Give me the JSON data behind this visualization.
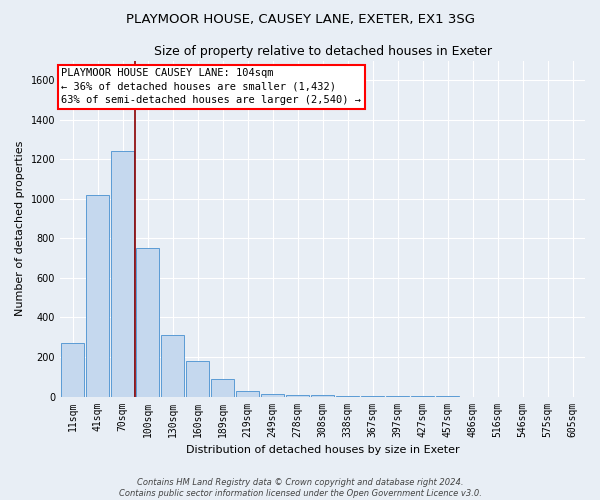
{
  "title1": "PLAYMOOR HOUSE, CAUSEY LANE, EXETER, EX1 3SG",
  "title2": "Size of property relative to detached houses in Exeter",
  "xlabel": "Distribution of detached houses by size in Exeter",
  "ylabel": "Number of detached properties",
  "categories": [
    "11sqm",
    "41sqm",
    "70sqm",
    "100sqm",
    "130sqm",
    "160sqm",
    "189sqm",
    "219sqm",
    "249sqm",
    "278sqm",
    "308sqm",
    "338sqm",
    "367sqm",
    "397sqm",
    "427sqm",
    "457sqm",
    "486sqm",
    "516sqm",
    "546sqm",
    "575sqm",
    "605sqm"
  ],
  "values": [
    270,
    1020,
    1240,
    750,
    310,
    180,
    90,
    30,
    15,
    10,
    7,
    5,
    3,
    2,
    1,
    1,
    0,
    0,
    0,
    0,
    0
  ],
  "bar_color": "#c5d8ee",
  "bar_edge_color": "#5b9bd5",
  "vline_color": "#8B0000",
  "vline_x": 2.5,
  "annotation_text_line1": "PLAYMOOR HOUSE CAUSEY LANE: 104sqm",
  "annotation_text_line2": "← 36% of detached houses are smaller (1,432)",
  "annotation_text_line3": "63% of semi-detached houses are larger (2,540) →",
  "ylim": [
    0,
    1700
  ],
  "yticks": [
    0,
    200,
    400,
    600,
    800,
    1000,
    1200,
    1400,
    1600
  ],
  "footer_text": "Contains HM Land Registry data © Crown copyright and database right 2024.\nContains public sector information licensed under the Open Government Licence v3.0.",
  "bg_color": "#e8eef5",
  "plot_bg_color": "#e8eef5",
  "grid_color": "#ffffff",
  "title1_fontsize": 9.5,
  "title2_fontsize": 9,
  "axis_label_fontsize": 8,
  "tick_fontsize": 7,
  "annotation_fontsize": 7.5,
  "footer_fontsize": 6
}
